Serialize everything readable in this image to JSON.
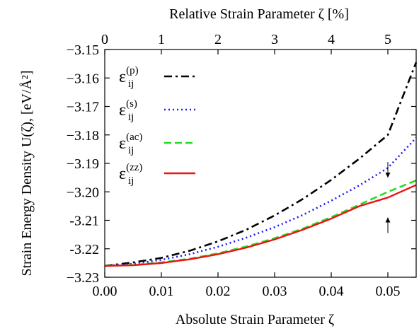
{
  "chart_data": {
    "type": "line",
    "title": "",
    "xlabel": "Absolute Strain Parameter ζ",
    "x2label": "Relative Strain Parameter ζ [%]",
    "ylabel": "Strain Energy Density U(ζ), [eV/Å²]",
    "xlim": [
      0.0,
      0.055
    ],
    "ylim": [
      -3.23,
      -3.15
    ],
    "x2lim": [
      0,
      5.5
    ],
    "xticks": [
      {
        "value": 0.0,
        "label": "0.00"
      },
      {
        "value": 0.01,
        "label": "0.01"
      },
      {
        "value": 0.02,
        "label": "0.02"
      },
      {
        "value": 0.03,
        "label": "0.03"
      },
      {
        "value": 0.04,
        "label": "0.04"
      },
      {
        "value": 0.05,
        "label": "0.05"
      }
    ],
    "x2ticks": [
      {
        "value": 0,
        "label": "0"
      },
      {
        "value": 1,
        "label": "1"
      },
      {
        "value": 2,
        "label": "2"
      },
      {
        "value": 3,
        "label": "3"
      },
      {
        "value": 4,
        "label": "4"
      },
      {
        "value": 5,
        "label": "5"
      }
    ],
    "yticks": [
      {
        "value": -3.15,
        "label": "−3.15"
      },
      {
        "value": -3.16,
        "label": "−3.16"
      },
      {
        "value": -3.17,
        "label": "−3.17"
      },
      {
        "value": -3.18,
        "label": "−3.18"
      },
      {
        "value": -3.19,
        "label": "−3.19"
      },
      {
        "value": -3.2,
        "label": "−3.20"
      },
      {
        "value": -3.21,
        "label": "-3.21"
      },
      {
        "value": -3.22,
        "label": "-3.22"
      },
      {
        "value": -3.23,
        "label": "−3.23"
      }
    ],
    "legend_position": "top-left",
    "grid": false,
    "series": [
      {
        "name": "ε",
        "sub": "ij",
        "sup": "(p)",
        "color": "#000000",
        "dash": "dashdot",
        "x": [
          0,
          0.005,
          0.01,
          0.015,
          0.02,
          0.025,
          0.03,
          0.035,
          0.04,
          0.045,
          0.05,
          0.055
        ],
        "y": [
          -3.226,
          -3.2248,
          -3.2232,
          -3.2207,
          -3.2174,
          -3.2133,
          -3.2083,
          -3.2025,
          -3.1958,
          -3.1883,
          -3.18,
          -3.1545
        ]
      },
      {
        "name": "ε",
        "sub": "ij",
        "sup": "(s)",
        "color": "#1a1aff",
        "dash": "dotted",
        "x": [
          0,
          0.005,
          0.01,
          0.015,
          0.02,
          0.025,
          0.03,
          0.035,
          0.04,
          0.045,
          0.05,
          0.055
        ],
        "y": [
          -3.226,
          -3.2253,
          -3.2239,
          -3.2219,
          -3.2193,
          -3.2161,
          -3.2124,
          -3.2081,
          -3.2031,
          -3.1977,
          -3.1916,
          -3.181
        ]
      },
      {
        "name": "ε",
        "sub": "ij",
        "sup": "(ac)",
        "color": "#22dd22",
        "dash": "dashed",
        "x": [
          0,
          0.005,
          0.01,
          0.015,
          0.02,
          0.025,
          0.03,
          0.035,
          0.04,
          0.045,
          0.05,
          0.055
        ],
        "y": [
          -3.226,
          -3.2257,
          -3.2248,
          -3.2235,
          -3.2216,
          -3.2192,
          -3.2163,
          -3.2129,
          -3.2089,
          -3.2045,
          -3.2,
          -3.196
        ]
      },
      {
        "name": "ε",
        "sub": "ij",
        "sup": "(zz)",
        "color": "#ee1111",
        "dash": "solid",
        "x": [
          0,
          0.005,
          0.01,
          0.015,
          0.02,
          0.025,
          0.03,
          0.035,
          0.04,
          0.045,
          0.05,
          0.055
        ],
        "y": [
          -3.226,
          -3.2258,
          -3.225,
          -3.2237,
          -3.2219,
          -3.2196,
          -3.2167,
          -3.2133,
          -3.2094,
          -3.205,
          -3.202,
          -3.1976
        ]
      }
    ],
    "annotations": [
      {
        "type": "double-arrow",
        "x": 0.05,
        "y_top": -3.195,
        "y_bottom": -3.209
      }
    ]
  }
}
